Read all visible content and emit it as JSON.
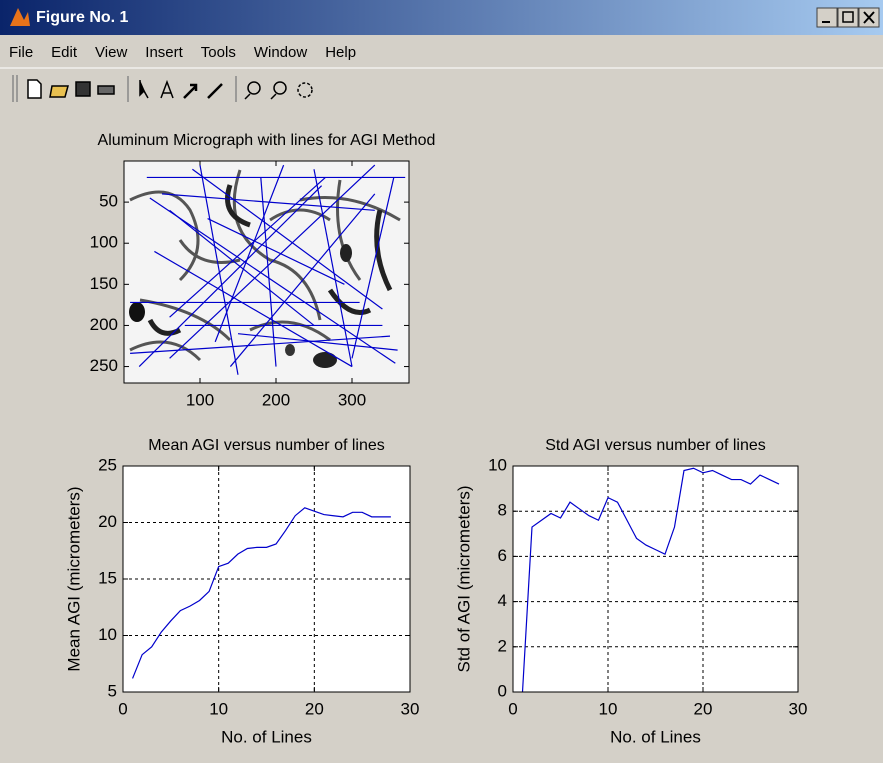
{
  "window": {
    "title": "Figure No. 1",
    "menu": [
      "File",
      "Edit",
      "View",
      "Insert",
      "Tools",
      "Window",
      "Help"
    ]
  },
  "chart_data": [
    {
      "type": "image",
      "title": "Aluminum Micrograph with lines for AGI Method",
      "xlim": [
        0,
        375
      ],
      "ylim": [
        0,
        270
      ],
      "y_reversed": true,
      "xticks": [
        100,
        200,
        300
      ],
      "yticks": [
        50,
        100,
        150,
        200,
        250
      ],
      "grid": false,
      "color": "#0000cc",
      "lines": [
        {
          "x": [
            30,
            370
          ],
          "y": [
            20,
            20
          ]
        },
        {
          "x": [
            8,
            310
          ],
          "y": [
            172,
            172
          ]
        },
        {
          "x": [
            8,
            350
          ],
          "y": [
            234,
            213
          ]
        },
        {
          "x": [
            34,
            357
          ],
          "y": [
            45,
            246
          ]
        },
        {
          "x": [
            60,
            265
          ],
          "y": [
            190,
            20
          ]
        },
        {
          "x": [
            50,
            330
          ],
          "y": [
            40,
            60
          ]
        },
        {
          "x": [
            100,
            150
          ],
          "y": [
            5,
            260
          ]
        },
        {
          "x": [
            140,
            330
          ],
          "y": [
            250,
            40
          ]
        },
        {
          "x": [
            210,
            120
          ],
          "y": [
            5,
            220
          ]
        },
        {
          "x": [
            330,
            60
          ],
          "y": [
            5,
            240
          ]
        },
        {
          "x": [
            40,
            300
          ],
          "y": [
            110,
            250
          ]
        },
        {
          "x": [
            90,
            340
          ],
          "y": [
            10,
            180
          ]
        },
        {
          "x": [
            250,
            300
          ],
          "y": [
            10,
            250
          ]
        },
        {
          "x": [
            300,
            355
          ],
          "y": [
            240,
            20
          ]
        },
        {
          "x": [
            80,
            340
          ],
          "y": [
            200,
            200
          ]
        },
        {
          "x": [
            110,
            290
          ],
          "y": [
            70,
            150
          ]
        },
        {
          "x": [
            180,
            200
          ],
          "y": [
            20,
            250
          ]
        },
        {
          "x": [
            20,
            260
          ],
          "y": [
            250,
            30
          ]
        },
        {
          "x": [
            150,
            360
          ],
          "y": [
            210,
            230
          ]
        },
        {
          "x": [
            60,
            250
          ],
          "y": [
            60,
            200
          ]
        }
      ]
    },
    {
      "type": "line",
      "title": "Mean AGI versus number of lines",
      "xlabel": "No. of Lines",
      "ylabel": "Mean AGI (micrometers)",
      "xlim": [
        0,
        30
      ],
      "ylim": [
        5,
        25
      ],
      "xticks": [
        0,
        10,
        20,
        30
      ],
      "yticks": [
        5,
        10,
        15,
        20,
        25
      ],
      "grid": true,
      "x": [
        1,
        2,
        3,
        4,
        5,
        6,
        7,
        8,
        9,
        10,
        11,
        12,
        13,
        14,
        15,
        16,
        17,
        18,
        19,
        20,
        21,
        22,
        23,
        24,
        25,
        26,
        27,
        28
      ],
      "series": [
        {
          "color": "#0000cc",
          "values": [
            6.2,
            8.3,
            9.0,
            10.3,
            11.3,
            12.2,
            12.6,
            13.1,
            13.9,
            16.1,
            16.4,
            17.2,
            17.7,
            17.8,
            17.8,
            18.1,
            19.3,
            20.6,
            21.3,
            21.0,
            20.7,
            20.6,
            20.5,
            20.9,
            20.9,
            20.5,
            20.5,
            20.5
          ]
        }
      ]
    },
    {
      "type": "line",
      "title": "Std AGI versus number of lines",
      "xlabel": "No. of Lines",
      "ylabel": "Std of AGI (micrometers)",
      "xlim": [
        0,
        30
      ],
      "ylim": [
        0,
        10
      ],
      "xticks": [
        0,
        10,
        20,
        30
      ],
      "yticks": [
        0,
        2,
        4,
        6,
        8,
        10
      ],
      "grid": true,
      "x": [
        1,
        2,
        3,
        4,
        5,
        6,
        7,
        8,
        9,
        10,
        11,
        12,
        13,
        14,
        15,
        16,
        17,
        18,
        19,
        20,
        21,
        22,
        23,
        24,
        25,
        26,
        27,
        28
      ],
      "series": [
        {
          "color": "#0000cc",
          "values": [
            0,
            7.3,
            7.6,
            7.9,
            7.7,
            8.4,
            8.1,
            7.8,
            7.6,
            8.6,
            8.4,
            7.6,
            6.8,
            6.5,
            6.3,
            6.1,
            7.3,
            9.8,
            9.9,
            9.7,
            9.8,
            9.6,
            9.4,
            9.4,
            9.2,
            9.6,
            9.4,
            9.2
          ]
        }
      ]
    }
  ]
}
